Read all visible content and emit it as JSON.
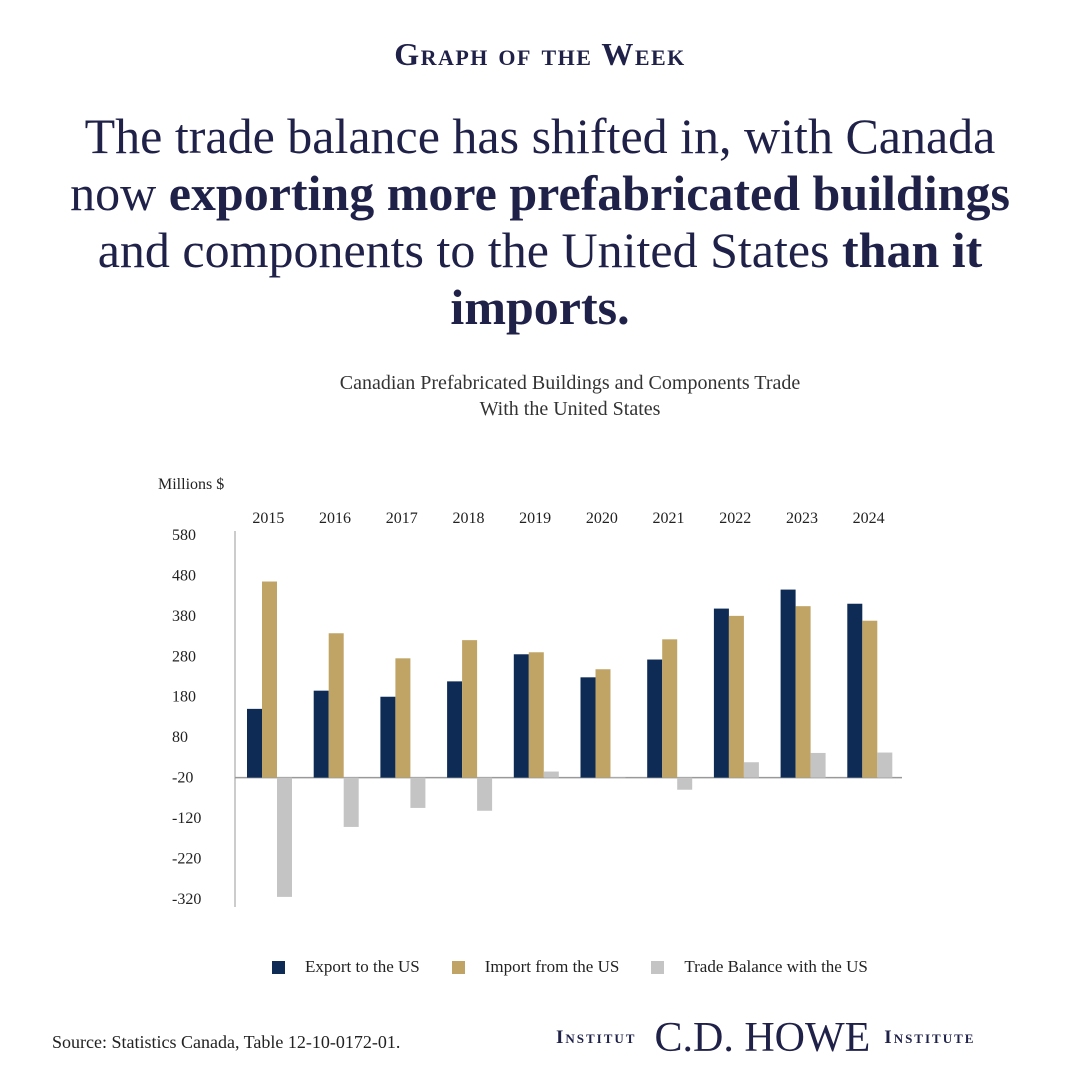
{
  "kicker": "Graph of the Week",
  "headline": {
    "p1": "The trade balance has shifted in, with Canada now ",
    "b1": "exporting more prefabricated buildings",
    "p2": " and components to the United States ",
    "b2": "than it imports."
  },
  "chart_data": {
    "type": "bar",
    "title_line1": "Canadian Prefabricated Buildings and Components Trade",
    "title_line2": "With the United States",
    "ylabel": "Millions $",
    "ylim": [
      -340,
      580
    ],
    "yticks": [
      580,
      480,
      380,
      280,
      180,
      80,
      -20,
      -120,
      -220,
      -320
    ],
    "categories": [
      "2015",
      "2016",
      "2017",
      "2018",
      "2019",
      "2020",
      "2021",
      "2022",
      "2023",
      "2024"
    ],
    "series": [
      {
        "name": "Export to the US",
        "color": "#0d2b55",
        "values": [
          150,
          195,
          180,
          218,
          285,
          228,
          272,
          398,
          445,
          410
        ]
      },
      {
        "name": "Import from the US",
        "color": "#c0a465",
        "values": [
          465,
          337,
          275,
          320,
          290,
          248,
          322,
          380,
          404,
          368
        ]
      },
      {
        "name": "Trade Balance with the US",
        "color": "#c4c4c4",
        "values": [
          -315,
          -142,
          -95,
          -102,
          -5,
          -20,
          -50,
          18,
          41,
          42
        ]
      }
    ]
  },
  "source": "Source: Statistics Canada, Table 12-10-0172-01.",
  "logo": {
    "left": "Institut",
    "main": "C.D. HOWE",
    "right": "Institute"
  }
}
